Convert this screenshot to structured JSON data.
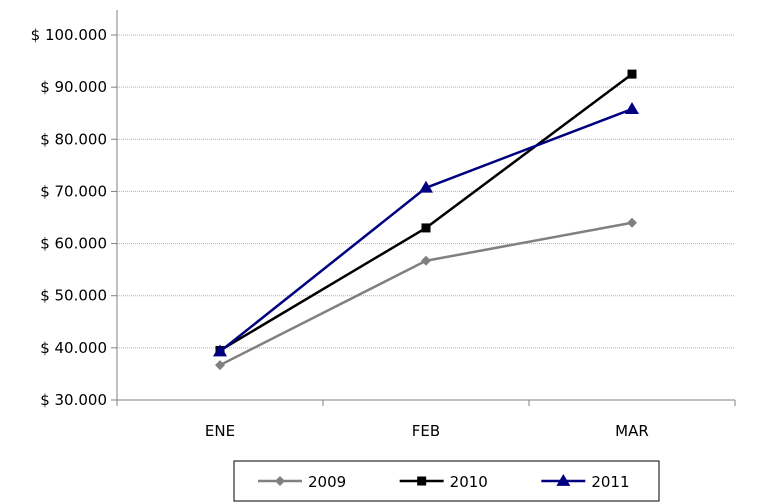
{
  "chart_data": {
    "type": "line",
    "title": "",
    "xlabel": "",
    "ylabel": "",
    "categories": [
      "ENE",
      "FEB",
      "MAR"
    ],
    "ylim": [
      30000,
      100000
    ],
    "ytick_labels": [
      "$ 100.000",
      "$ 90.000",
      "$ 80.000",
      "$ 70.000",
      "$ 60.000",
      "$ 50.000",
      "$ 40.000",
      "$ 30.000"
    ],
    "ytick_values": [
      100000,
      90000,
      80000,
      70000,
      60000,
      50000,
      40000,
      30000
    ],
    "grid": true,
    "legend_position": "bottom",
    "series": [
      {
        "name": "2009",
        "values": [
          36700,
          56700,
          64000
        ],
        "color": "#808080",
        "marker": "diamond"
      },
      {
        "name": "2010",
        "values": [
          39500,
          63000,
          92500
        ],
        "color": "#000000",
        "marker": "square"
      },
      {
        "name": "2011",
        "values": [
          39300,
          70700,
          85800
        ],
        "color": "#000080",
        "marker": "triangle"
      }
    ]
  }
}
